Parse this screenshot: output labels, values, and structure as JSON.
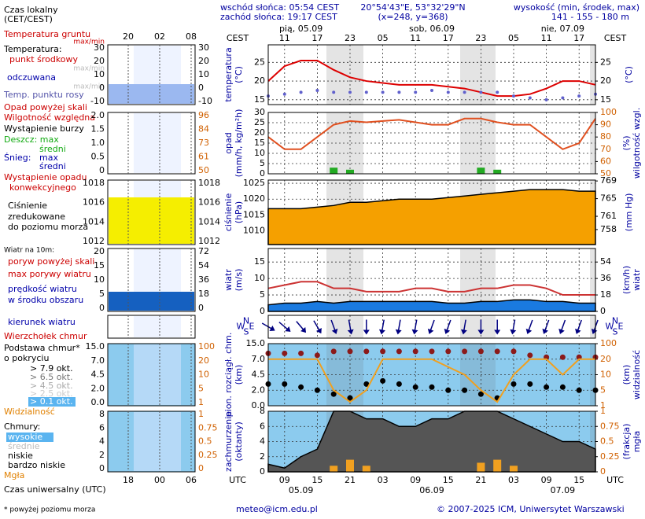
{
  "header": {
    "sunrise": "wschód słońca: 05:54 CEST",
    "sunset": "zachód słońca: 19:17 CEST",
    "coords": "20°54'43\"E, 53°32'29\"N",
    "grid": "(x=248, y=368)",
    "elev_title": "wysokość (min, środek, max)",
    "elev": "141 - 155 - 180 m"
  },
  "footer": {
    "note": "* powyżej poziomu morza",
    "email": "meteo@icm.edu.pl",
    "copyright": "© 2007-2025 ICM, Uniwersytet Warszawski"
  },
  "legend": {
    "local_time": [
      "Czas lokalny",
      "(CET/CEST)"
    ],
    "local_hours": [
      "20",
      "02",
      "08"
    ],
    "utc_hours": [
      "18",
      "00",
      "06"
    ],
    "utc_title": "Czas uniwersalny (UTC)",
    "items": [
      "Temperatura gruntu",
      "max/min",
      "Temperatura:",
      "punkt środkowy",
      "max/min",
      "odczuwana",
      "max/min",
      "Temp. punktu rosy",
      "Opad powyżej skali",
      "Wilgotność względna",
      "Wystąpienie burzy",
      "Deszcz: max",
      "średni",
      "Śnieg:",
      "max",
      "średni",
      "Wystąpienie opadu",
      "konwekcyjnego",
      "Ciśnienie",
      "zredukowane",
      "do poziomu morza",
      "Wiatr na 10m:",
      "poryw powyżej skali",
      "max porywy wiatru",
      "prędkość wiatru",
      "w środku obszaru",
      "kierunek wiatru",
      "Wierzchołek chmur",
      "Podstawa chmur*",
      "o pokryciu",
      "> 7.9 okt.",
      "> 6.5 okt.",
      "> 4.5 okt.",
      "> 2.5 okt.",
      "> 0.1 okt.",
      "Widzialność",
      "Chmury:",
      "wysokie",
      "średnie",
      "niskie",
      "bardzo niskie",
      "Mgła"
    ],
    "mini_ticks": [
      {
        "left": [
          "30",
          "20",
          "10",
          "0",
          "-10"
        ],
        "right": [
          "30",
          "20",
          "10",
          "0",
          "-10"
        ]
      },
      {
        "left": [
          "2.0",
          "1.5",
          "1.0",
          "0.5",
          "0"
        ],
        "right": [
          "96",
          "84",
          "73",
          "61",
          "50"
        ]
      },
      {
        "left": [
          "1018",
          "1016",
          "1014",
          "1012"
        ],
        "right": [
          "1018",
          "1016",
          "1014",
          "1012"
        ]
      },
      {
        "left": [
          "20",
          "15",
          "10",
          "5",
          "0"
        ],
        "right": [
          "72",
          "54",
          "36",
          "18",
          "0"
        ]
      },
      {
        "left": [],
        "right": []
      },
      {
        "left": [
          "15.0",
          "7.0",
          "4.5",
          "2.0",
          "0.0"
        ],
        "right": [
          "100",
          "20",
          "10",
          "5",
          "1"
        ]
      },
      {
        "left": [
          "8",
          "6",
          "4",
          "2",
          "0"
        ],
        "right": [
          "1",
          "0.75",
          "0.5",
          "0.25",
          "0"
        ]
      }
    ]
  },
  "chart_data": {
    "type": "meteogram",
    "cest_label": "CEST",
    "utc_label": "UTC",
    "categories": [
      null,
      "09",
      null,
      "15",
      null,
      "21",
      null,
      "03",
      null,
      "09",
      null,
      "15",
      null,
      "21",
      null,
      "03",
      null,
      "09",
      null,
      "15",
      null
    ],
    "cest_hours": [
      null,
      "11",
      null,
      "17",
      null,
      "23",
      null,
      "05",
      null,
      "11",
      null,
      "17",
      null,
      "23",
      null,
      "05",
      null,
      "11",
      null,
      "17",
      null
    ],
    "days": [
      null,
      null,
      "pią, 05.09",
      null,
      null,
      null,
      null,
      null,
      null,
      null,
      "sob, 06.09",
      null,
      null,
      null,
      null,
      null,
      null,
      null,
      "nie, 07.09",
      null,
      null
    ],
    "dates": [
      null,
      null,
      "05.09",
      null,
      null,
      null,
      null,
      null,
      null,
      null,
      "06.09",
      null,
      null,
      null,
      null,
      null,
      null,
      null,
      "07.09",
      null,
      null
    ],
    "panels": [
      {
        "label": [
          "temperatura",
          "(°C)"
        ],
        "label2": [
          "(°C)"
        ],
        "ylim": [
          13.7,
          29.7
        ],
        "yticks": [
          15,
          20,
          25
        ],
        "y2lim": [
          13.7,
          29.7
        ],
        "y2ticks": [
          15,
          20,
          25
        ],
        "grid": true,
        "series": [
          {
            "kind": "line",
            "color": "#dd0000",
            "values": [
              20,
              24,
              25.5,
              25.5,
              23,
              21,
              20,
              19.5,
              19,
              19,
              19,
              18.5,
              18,
              17,
              16,
              16,
              16.5,
              18,
              20,
              20,
              19
            ]
          },
          {
            "kind": "dots",
            "color": "#6060cc",
            "values": [
              16,
              16.5,
              17,
              17.5,
              17,
              17,
              17,
              17,
              17,
              17,
              17.5,
              17,
              17,
              17,
              17,
              16,
              15.5,
              15,
              15.5,
              16,
              16.5
            ]
          }
        ]
      },
      {
        "label": [
          "opad",
          "(mm/h, kg/m²h)"
        ],
        "label2": [
          "(%)",
          "wilgotność wzgl."
        ],
        "ylim": [
          0,
          30
        ],
        "yticks": [
          0,
          5,
          10,
          15,
          20,
          25,
          30
        ],
        "y2lim": [
          50,
          100
        ],
        "y2ticks": [
          50,
          60,
          70,
          80,
          90,
          100
        ],
        "grid": true,
        "series": [
          {
            "kind": "bars",
            "color": "#22aa22",
            "values": [
              0,
              0,
              0,
              0,
              3,
              2,
              0,
              0,
              0,
              0,
              0,
              0,
              0,
              3,
              2,
              0,
              0,
              0,
              0,
              0,
              0
            ]
          },
          {
            "kind": "line",
            "axis": "y2",
            "color": "#e05020",
            "values": [
              80,
              70,
              70,
              80,
              90,
              93,
              92,
              93,
              94,
              92,
              90,
              90,
              95,
              95,
              92,
              90,
              90,
              80,
              70,
              75,
              95
            ]
          }
        ]
      },
      {
        "label": [
          "ciśnienie",
          "(hPa)"
        ],
        "label2": [
          "(mm Hg)"
        ],
        "ylim": [
          1005.7,
          1026
        ],
        "yticks": [
          1010,
          1015,
          1020,
          1025
        ],
        "y2lim": [
          754.6,
          769.2
        ],
        "y2ticks": [
          758,
          761,
          765,
          769
        ],
        "grid": true,
        "series": [
          {
            "kind": "area",
            "color": "#f5a000",
            "values": [
              1017,
              1017,
              1017,
              1017.5,
              1018,
              1019,
              1019,
              1019.5,
              1020,
              1020,
              1020,
              1020.5,
              1021,
              1021.5,
              1022,
              1022.5,
              1023,
              1023,
              1023,
              1022.5,
              1022.5
            ]
          }
        ]
      },
      {
        "label": [
          "wiatr",
          "(m/s)"
        ],
        "label2": [
          "(km/h)",
          "wiatr"
        ],
        "ylim": [
          0,
          19.1
        ],
        "yticks": [
          0,
          5,
          10,
          15
        ],
        "y2lim": [
          0,
          68.8
        ],
        "y2ticks": [
          0,
          18,
          36,
          54
        ],
        "grid": true,
        "series": [
          {
            "kind": "area",
            "color": "#1a7ae0",
            "values": [
              2,
              2.5,
              2.5,
              3,
              2.5,
              3,
              3,
              3,
              3,
              3,
              3,
              2.5,
              2.5,
              3,
              3,
              3.5,
              3.5,
              3,
              3,
              2.5,
              2.5
            ]
          },
          {
            "kind": "line",
            "color": "#cc3333",
            "values": [
              7,
              8,
              9,
              9,
              7,
              7,
              6,
              6,
              6,
              7,
              7,
              6,
              6,
              7,
              7,
              8,
              8,
              7,
              5,
              5,
              5
            ]
          }
        ]
      },
      {
        "compass": [
          "N",
          "W",
          "E",
          "S"
        ],
        "series": [
          {
            "kind": "arrows",
            "color": "#000080",
            "values": [
              300,
              310,
              320,
              330,
              340,
              350,
              0,
              10,
              10,
              10,
              20,
              20,
              10,
              0,
              0,
              10,
              20,
              20,
              20,
              20,
              20
            ]
          }
        ]
      },
      {
        "label": [
          "pion. rozciągł. chm.",
          "(km)"
        ],
        "label2": [
          "(km)",
          "widzialność"
        ],
        "tick_spaced": true,
        "background": "#8ccbee",
        "ylim": [
          0,
          15
        ],
        "yticks": [
          {
            "value": 0,
            "label": "0.0"
          },
          {
            "value": 2,
            "label": "2.0"
          },
          {
            "value": 4.5,
            "label": "4.5"
          },
          {
            "value": 7,
            "label": "7.0"
          },
          {
            "value": 15,
            "label": "15.0"
          }
        ],
        "y2lim": [
          1,
          100
        ],
        "y2ticks": [
          1,
          5,
          10,
          20,
          100
        ],
        "grid": true,
        "series": [
          {
            "kind": "dots",
            "color": "#8b1a1a",
            "values": [
              10,
              10,
              10,
              9,
              11,
              11,
              11,
              11,
              11,
              11,
              11,
              11,
              11,
              11,
              11,
              11,
              9,
              8,
              8,
              8,
              8
            ]
          },
          {
            "kind": "dots",
            "color": "#000000",
            "values": [
              3,
              3,
              2.5,
              2,
              1.5,
              1,
              3,
              3.5,
              3,
              2.5,
              2.5,
              2,
              2,
              1.5,
              1,
              3,
              3,
              2.5,
              2.5,
              2,
              2
            ]
          },
          {
            "kind": "line",
            "axis": "y2",
            "color": "#f0a020",
            "values": [
              20,
              20,
              20,
              20,
              5,
              2,
              5,
              20,
              20,
              20,
              20,
              15,
              10,
              5,
              2,
              10,
              20,
              20,
              10,
              20,
              20
            ]
          }
        ]
      },
      {
        "label": [
          "zachmurzenie",
          "(oktanty)"
        ],
        "label2": [
          "(frakcja)",
          "mgła"
        ],
        "background": "#8ccbee",
        "ylim": [
          0,
          8
        ],
        "yticks": [
          0,
          2,
          4,
          6,
          8
        ],
        "y2lim": [
          0,
          1
        ],
        "y2ticks": [
          0,
          0.25,
          0.5,
          0.75,
          1
        ],
        "grid": true,
        "series": [
          {
            "kind": "area",
            "color": "#555555",
            "values": [
              1,
              0.5,
              2,
              3,
              8,
              8,
              7,
              7,
              6,
              6,
              7,
              7,
              8,
              8,
              8,
              7,
              6,
              5,
              4,
              4,
              3
            ]
          },
          {
            "kind": "bars",
            "axis": "y2",
            "color": "#f0a020",
            "values": [
              0,
              0,
              0,
              0,
              0.1,
              0.2,
              0.1,
              0,
              0,
              0,
              0,
              0,
              0,
              0.15,
              0.2,
              0.1,
              0,
              0,
              0,
              0,
              0
            ]
          }
        ]
      }
    ]
  }
}
